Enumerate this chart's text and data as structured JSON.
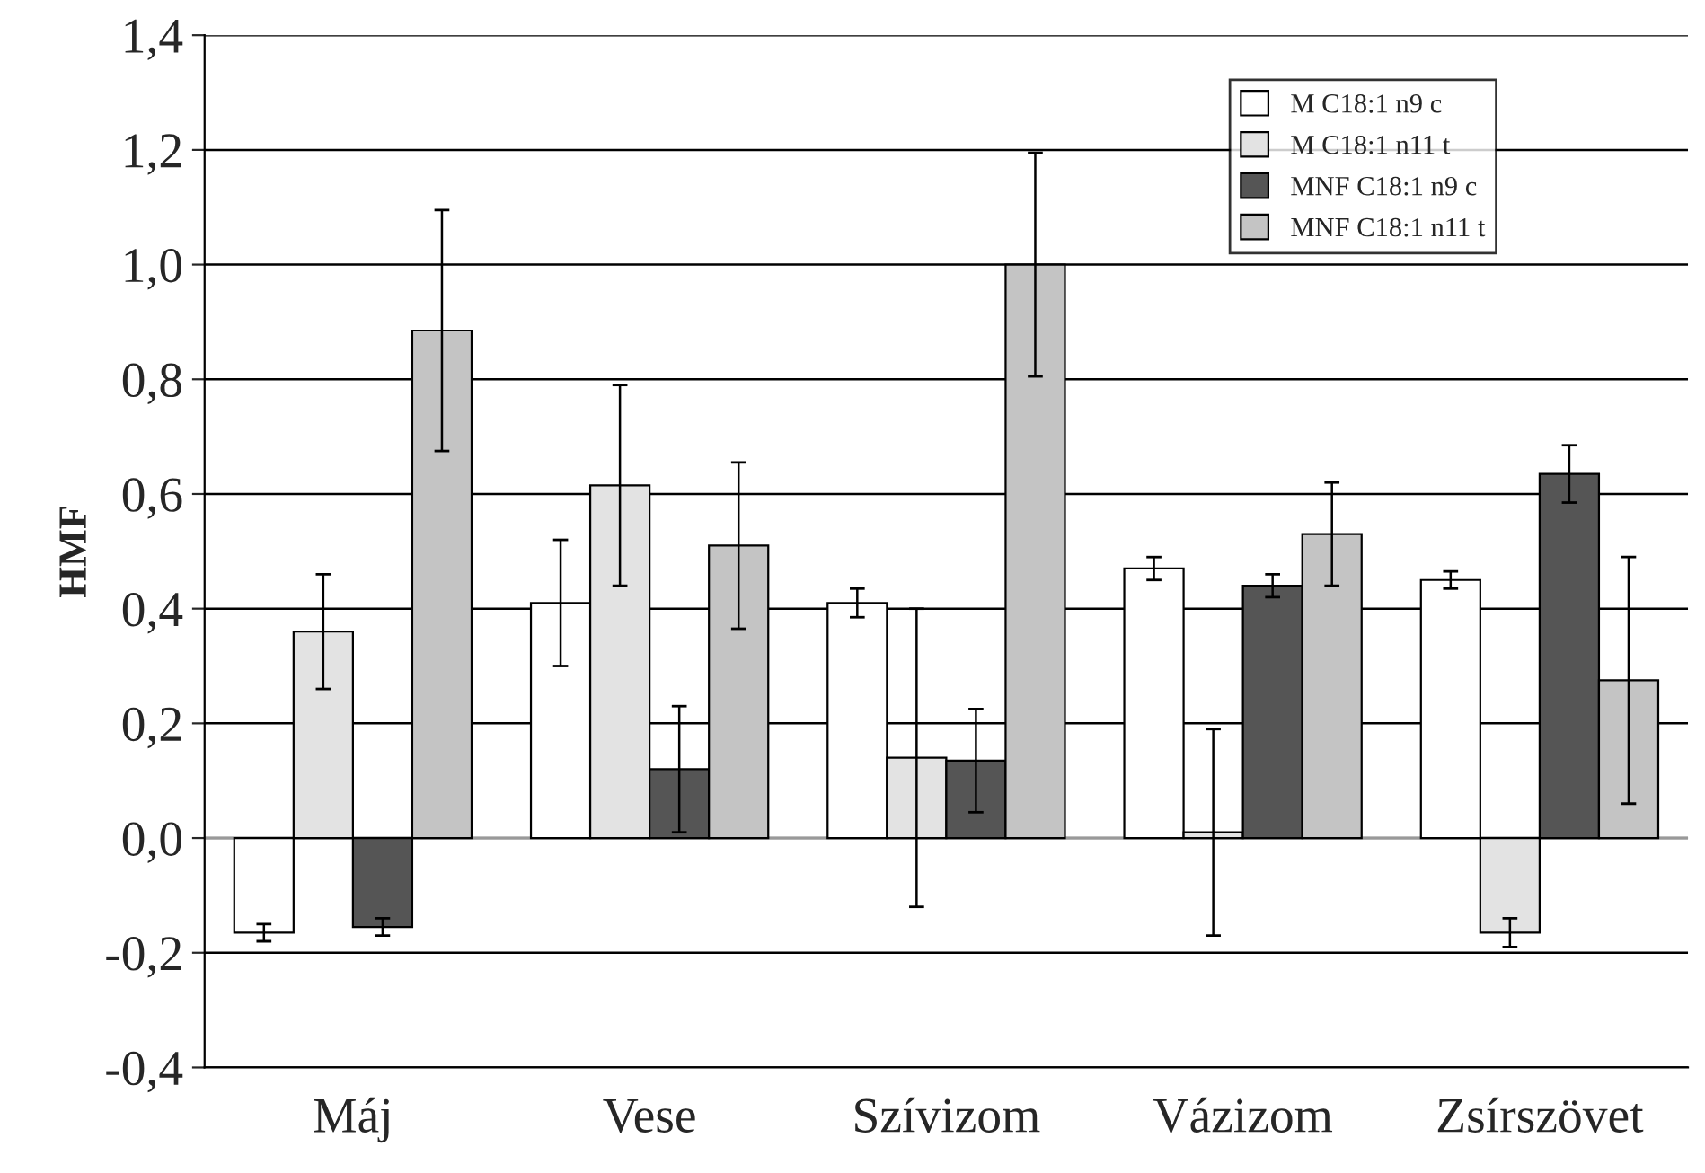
{
  "chart_data": {
    "type": "bar",
    "ylabel": "HMF",
    "categories": [
      "Máj",
      "Vese",
      "Szívizom",
      "Vázizom",
      "Zsírszövet"
    ],
    "series": [
      {
        "name": "M C18:1 n9 c",
        "color": "#ffffff",
        "values": [
          -0.165,
          0.41,
          0.41,
          0.47,
          0.45
        ],
        "errors": [
          0.015,
          0.11,
          0.025,
          0.02,
          0.015
        ]
      },
      {
        "name": "M C18:1 n11 t",
        "color": "#e3e3e3",
        "values": [
          0.36,
          0.615,
          0.14,
          0.01,
          -0.165
        ],
        "errors": [
          0.1,
          0.175,
          0.26,
          0.18,
          0.025
        ]
      },
      {
        "name": "MNF C18:1 n9 c",
        "color": "#555555",
        "values": [
          -0.155,
          0.12,
          0.135,
          0.44,
          0.635
        ],
        "errors": [
          0.015,
          0.11,
          0.09,
          0.02,
          0.05
        ]
      },
      {
        "name": "MNF C18:1 n11 t",
        "color": "#c4c4c4",
        "values": [
          0.885,
          0.51,
          1.0,
          0.53,
          0.275
        ],
        "errors": [
          0.21,
          0.145,
          0.195,
          0.09,
          0.215
        ]
      }
    ],
    "ylim": [
      -0.4,
      1.4
    ],
    "yticks": [
      {
        "value": -0.4,
        "label": "-0,4"
      },
      {
        "value": -0.2,
        "label": "-0,2"
      },
      {
        "value": 0,
        "label": "0,0"
      },
      {
        "value": 0.2,
        "label": "0,2"
      },
      {
        "value": 0.4,
        "label": "0,4"
      },
      {
        "value": 0.6,
        "label": "0,6"
      },
      {
        "value": 0.8,
        "label": "0,8"
      },
      {
        "value": 1.0,
        "label": "1,0"
      },
      {
        "value": 1.2,
        "label": "1,2"
      },
      {
        "value": 1.4,
        "label": "1,4"
      }
    ],
    "grid": "y",
    "legend": "top right"
  }
}
